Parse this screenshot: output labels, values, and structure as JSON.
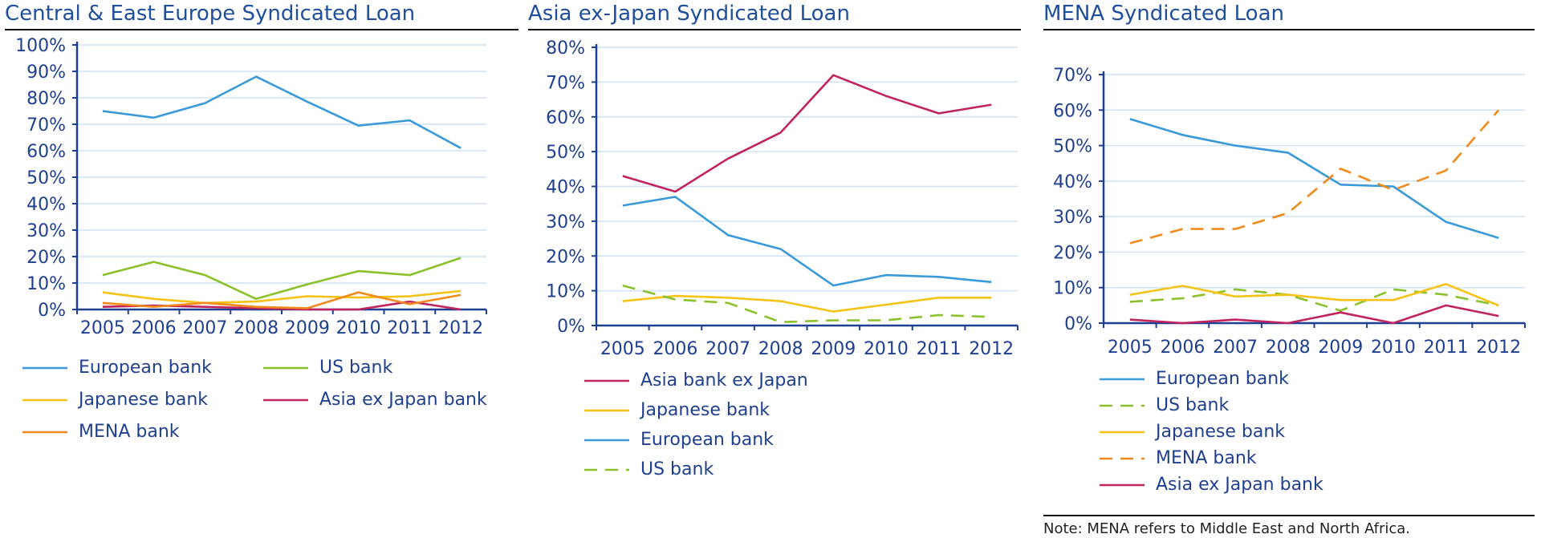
{
  "chart_data": [
    {
      "type": "line",
      "title": "Central & East Europe Syndicated Loan",
      "x": [
        "2005",
        "2006",
        "2007",
        "2008",
        "2009",
        "2010",
        "2011",
        "2012"
      ],
      "ylim": [
        0,
        100
      ],
      "ytick_labels": [
        "0%",
        "10%",
        "20%",
        "30%",
        "40%",
        "50%",
        "60%",
        "70%",
        "80%",
        "90%",
        "100%"
      ],
      "grid": true,
      "legend_placement": "bottom",
      "series": [
        {
          "name": "European bank",
          "color": "#3a9ad9",
          "dash": false,
          "values": [
            75,
            72.5,
            78,
            88,
            78.5,
            69.5,
            71.5,
            61
          ]
        },
        {
          "name": "US bank",
          "color": "#8bc12a",
          "dash": false,
          "values": [
            13,
            18,
            13,
            4,
            9.5,
            14.5,
            13,
            19.5
          ]
        },
        {
          "name": "Japanese bank",
          "color": "#f5c216",
          "dash": false,
          "values": [
            6.5,
            4,
            2.5,
            3,
            5,
            4.5,
            5,
            7
          ]
        },
        {
          "name": "Asia ex Japan bank",
          "color": "#c0235f",
          "dash": false,
          "values": [
            1,
            1.5,
            1,
            0.5,
            0,
            0,
            3,
            0
          ]
        },
        {
          "name": "MENA bank",
          "color": "#f08a1c",
          "dash": false,
          "values": [
            2.5,
            1,
            2.5,
            1,
            0.5,
            6.5,
            2,
            5.5
          ]
        }
      ]
    },
    {
      "type": "line",
      "title": "Asia ex-Japan Syndicated Loan",
      "x": [
        "2005",
        "2006",
        "2007",
        "2008",
        "2009",
        "2010",
        "2011",
        "2012"
      ],
      "ylim": [
        0,
        80
      ],
      "ytick_labels": [
        "0%",
        "10%",
        "20%",
        "30%",
        "40%",
        "50%",
        "60%",
        "70%",
        "80%"
      ],
      "grid": true,
      "legend_placement": "bottom",
      "series": [
        {
          "name": "Asia bank ex Japan",
          "color": "#c0235f",
          "dash": false,
          "values": [
            43,
            38.5,
            48,
            55.5,
            72,
            66,
            61,
            63.5
          ]
        },
        {
          "name": "Japanese bank",
          "color": "#f5c216",
          "dash": false,
          "values": [
            7,
            8.5,
            8,
            7,
            4,
            6,
            8,
            8
          ]
        },
        {
          "name": "European bank",
          "color": "#3a9ad9",
          "dash": false,
          "values": [
            34.5,
            37,
            26,
            22,
            11.5,
            14.5,
            14,
            12.5
          ]
        },
        {
          "name": "US bank",
          "color": "#8bc12a",
          "dash": true,
          "values": [
            11.5,
            7.5,
            6.5,
            1,
            1.5,
            1.5,
            3,
            2.5
          ]
        }
      ]
    },
    {
      "type": "line",
      "title": "MENA Syndicated Loan",
      "x": [
        "2005",
        "2006",
        "2007",
        "2008",
        "2009",
        "2010",
        "2011",
        "2012"
      ],
      "ylim": [
        0,
        70
      ],
      "ytick_labels": [
        "0%",
        "10%",
        "20%",
        "30%",
        "40%",
        "50%",
        "60%",
        "70%"
      ],
      "grid": true,
      "legend_placement": "bottom",
      "series": [
        {
          "name": "European bank",
          "color": "#3a9ad9",
          "dash": false,
          "values": [
            57.5,
            53,
            50,
            48,
            39,
            38.5,
            28.5,
            24
          ]
        },
        {
          "name": "US bank",
          "color": "#8bc12a",
          "dash": true,
          "values": [
            6,
            7,
            9.5,
            8,
            3.5,
            9.5,
            8,
            5
          ]
        },
        {
          "name": "Japanese bank",
          "color": "#f5c216",
          "dash": false,
          "values": [
            8,
            10.5,
            7.5,
            8,
            6.5,
            6.5,
            11,
            5
          ]
        },
        {
          "name": "MENA bank",
          "color": "#f08a1c",
          "dash": true,
          "values": [
            22.5,
            26.5,
            26.5,
            31,
            43.5,
            37.5,
            43,
            60
          ]
        },
        {
          "name": "Asia ex Japan bank",
          "color": "#c0235f",
          "dash": false,
          "values": [
            1,
            0,
            1,
            0,
            3,
            0,
            5,
            2
          ]
        }
      ]
    }
  ],
  "note": "Note: MENA refers to Middle East and North Africa."
}
